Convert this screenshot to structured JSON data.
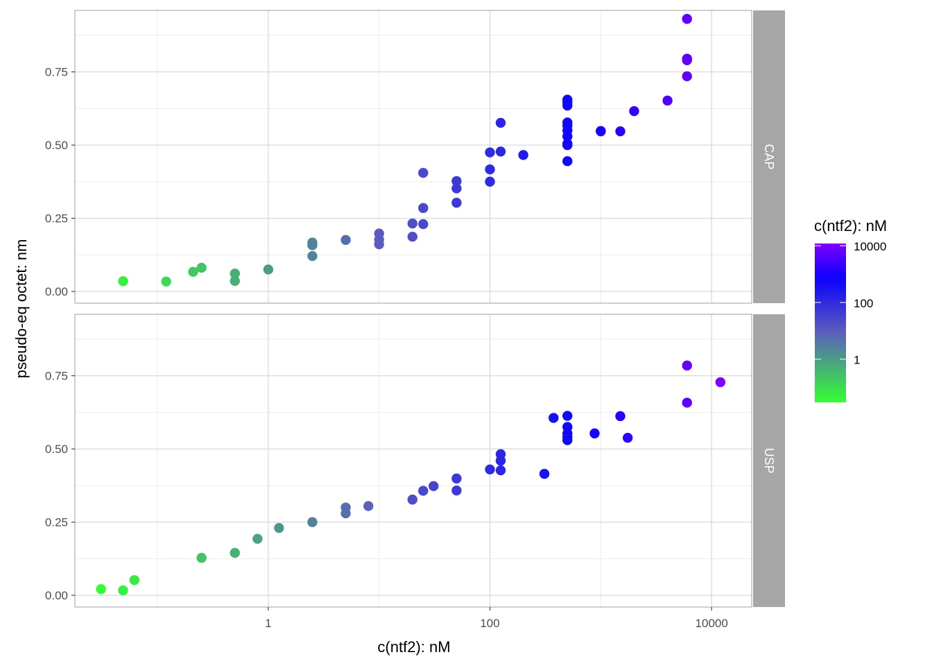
{
  "chart_data": {
    "type": "scatter",
    "xlabel": "c(ntf2): nM",
    "ylabel": "pseudo-eq octet: nm",
    "x_scale": "log10",
    "xlim": [
      0.018,
      23000
    ],
    "ylim": [
      -0.04,
      0.96
    ],
    "x_ticks": [
      1,
      100,
      10000
    ],
    "x_tick_labels": [
      "1",
      "100",
      "10000"
    ],
    "y_ticks": [
      0,
      0.25,
      0.5,
      0.75
    ],
    "y_tick_labels": [
      "0.00",
      "0.25",
      "0.50",
      "0.75"
    ],
    "grid": true,
    "legend": {
      "title": "c(ntf2): nM",
      "position": "right",
      "ticks": [
        1,
        100,
        10000
      ],
      "tick_labels": [
        "1",
        "100",
        "10000"
      ],
      "gradient": [
        "#33ff33",
        "#5555cc",
        "#0000ff",
        "#7f00ff"
      ],
      "range": [
        0.03,
        12000
      ]
    },
    "panels": [
      {
        "label": "CAP",
        "points": [
          {
            "x": 0.049,
            "y": 0.035
          },
          {
            "x": 0.12,
            "y": 0.034
          },
          {
            "x": 0.21,
            "y": 0.067
          },
          {
            "x": 0.25,
            "y": 0.081
          },
          {
            "x": 0.5,
            "y": 0.061
          },
          {
            "x": 0.5,
            "y": 0.036
          },
          {
            "x": 1.0,
            "y": 0.075
          },
          {
            "x": 2.5,
            "y": 0.167
          },
          {
            "x": 2.5,
            "y": 0.158
          },
          {
            "x": 2.5,
            "y": 0.121
          },
          {
            "x": 5.0,
            "y": 0.176
          },
          {
            "x": 10,
            "y": 0.198
          },
          {
            "x": 10,
            "y": 0.177
          },
          {
            "x": 10,
            "y": 0.161
          },
          {
            "x": 20,
            "y": 0.232
          },
          {
            "x": 20,
            "y": 0.187
          },
          {
            "x": 25,
            "y": 0.405
          },
          {
            "x": 25,
            "y": 0.285
          },
          {
            "x": 25,
            "y": 0.23
          },
          {
            "x": 50,
            "y": 0.377
          },
          {
            "x": 50,
            "y": 0.352
          },
          {
            "x": 50,
            "y": 0.303
          },
          {
            "x": 100,
            "y": 0.475
          },
          {
            "x": 100,
            "y": 0.417
          },
          {
            "x": 100,
            "y": 0.375
          },
          {
            "x": 125,
            "y": 0.576
          },
          {
            "x": 125,
            "y": 0.478
          },
          {
            "x": 200,
            "y": 0.466
          },
          {
            "x": 500,
            "y": 0.655
          },
          {
            "x": 500,
            "y": 0.646
          },
          {
            "x": 500,
            "y": 0.635
          },
          {
            "x": 500,
            "y": 0.577
          },
          {
            "x": 500,
            "y": 0.566
          },
          {
            "x": 500,
            "y": 0.55
          },
          {
            "x": 500,
            "y": 0.53
          },
          {
            "x": 500,
            "y": 0.505
          },
          {
            "x": 500,
            "y": 0.5
          },
          {
            "x": 500,
            "y": 0.445
          },
          {
            "x": 1000,
            "y": 0.548
          },
          {
            "x": 1000,
            "y": 0.547
          },
          {
            "x": 1500,
            "y": 0.547
          },
          {
            "x": 2000,
            "y": 0.616
          },
          {
            "x": 4000,
            "y": 0.652
          },
          {
            "x": 6000,
            "y": 0.931
          },
          {
            "x": 6000,
            "y": 0.795
          },
          {
            "x": 6000,
            "y": 0.79
          },
          {
            "x": 6000,
            "y": 0.735
          }
        ]
      },
      {
        "label": "USP",
        "points": [
          {
            "x": 0.031,
            "y": 0.021
          },
          {
            "x": 0.049,
            "y": 0.017
          },
          {
            "x": 0.062,
            "y": 0.052
          },
          {
            "x": 0.25,
            "y": 0.128
          },
          {
            "x": 0.5,
            "y": 0.145
          },
          {
            "x": 0.8,
            "y": 0.193
          },
          {
            "x": 1.25,
            "y": 0.23
          },
          {
            "x": 2.5,
            "y": 0.25
          },
          {
            "x": 5.0,
            "y": 0.3
          },
          {
            "x": 5.0,
            "y": 0.28
          },
          {
            "x": 8.0,
            "y": 0.305
          },
          {
            "x": 20,
            "y": 0.327
          },
          {
            "x": 25,
            "y": 0.357
          },
          {
            "x": 31,
            "y": 0.373
          },
          {
            "x": 50,
            "y": 0.399
          },
          {
            "x": 50,
            "y": 0.358
          },
          {
            "x": 100,
            "y": 0.43
          },
          {
            "x": 125,
            "y": 0.482
          },
          {
            "x": 125,
            "y": 0.46
          },
          {
            "x": 125,
            "y": 0.427
          },
          {
            "x": 310,
            "y": 0.415
          },
          {
            "x": 375,
            "y": 0.606
          },
          {
            "x": 500,
            "y": 0.613
          },
          {
            "x": 500,
            "y": 0.575
          },
          {
            "x": 500,
            "y": 0.553
          },
          {
            "x": 500,
            "y": 0.54
          },
          {
            "x": 500,
            "y": 0.53
          },
          {
            "x": 880,
            "y": 0.553
          },
          {
            "x": 1500,
            "y": 0.612
          },
          {
            "x": 1750,
            "y": 0.538
          },
          {
            "x": 6000,
            "y": 0.785
          },
          {
            "x": 6000,
            "y": 0.658
          },
          {
            "x": 12000,
            "y": 0.728
          }
        ]
      }
    ]
  }
}
